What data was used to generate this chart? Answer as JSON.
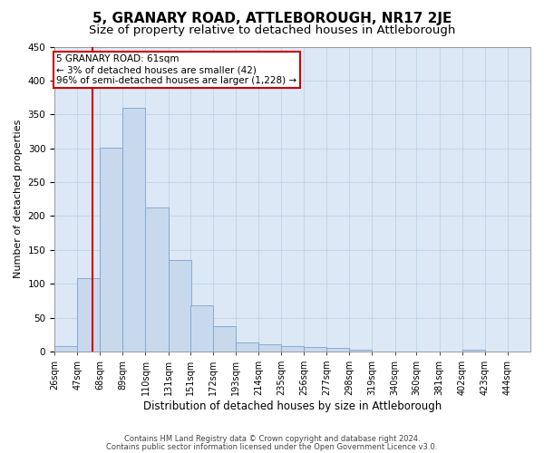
{
  "title": "5, GRANARY ROAD, ATTLEBOROUGH, NR17 2JE",
  "subtitle": "Size of property relative to detached houses in Attleborough",
  "xlabel": "Distribution of detached houses by size in Attleborough",
  "ylabel": "Number of detached properties",
  "footnote1": "Contains HM Land Registry data © Crown copyright and database right 2024.",
  "footnote2": "Contains public sector information licensed under the Open Government Licence v3.0.",
  "annotation_title": "5 GRANARY ROAD: 61sqm",
  "annotation_line1": "← 3% of detached houses are smaller (42)",
  "annotation_line2": "96% of semi-detached houses are larger (1,228) →",
  "bar_color": "#c8d9ee",
  "bar_edge_color": "#7ba3cc",
  "vline_color": "#cc0000",
  "annotation_box_edgecolor": "#cc0000",
  "annotation_fill": "#ffffff",
  "ax_facecolor": "#dce8f5",
  "background_color": "#ffffff",
  "grid_color": "#b8cfe0",
  "categories": [
    "26sqm",
    "47sqm",
    "68sqm",
    "89sqm",
    "110sqm",
    "131sqm",
    "151sqm",
    "172sqm",
    "193sqm",
    "214sqm",
    "235sqm",
    "256sqm",
    "277sqm",
    "298sqm",
    "319sqm",
    "340sqm",
    "360sqm",
    "381sqm",
    "402sqm",
    "423sqm",
    "444sqm"
  ],
  "values": [
    8,
    108,
    301,
    360,
    213,
    135,
    68,
    38,
    13,
    10,
    8,
    7,
    5,
    2,
    0,
    0,
    0,
    0,
    3,
    0,
    0
  ],
  "bin_starts": [
    26,
    47,
    68,
    89,
    110,
    131,
    151,
    172,
    193,
    214,
    235,
    256,
    277,
    298,
    319,
    340,
    360,
    381,
    402,
    423,
    444
  ],
  "bin_width": 21,
  "ylim": [
    0,
    450
  ],
  "yticks": [
    0,
    50,
    100,
    150,
    200,
    250,
    300,
    350,
    400,
    450
  ],
  "vline_x": 61,
  "title_fontsize": 11,
  "subtitle_fontsize": 9.5,
  "ylabel_fontsize": 8,
  "xlabel_fontsize": 8.5,
  "tick_fontsize": 7,
  "footnote_fontsize": 6,
  "annotation_fontsize": 7.5
}
